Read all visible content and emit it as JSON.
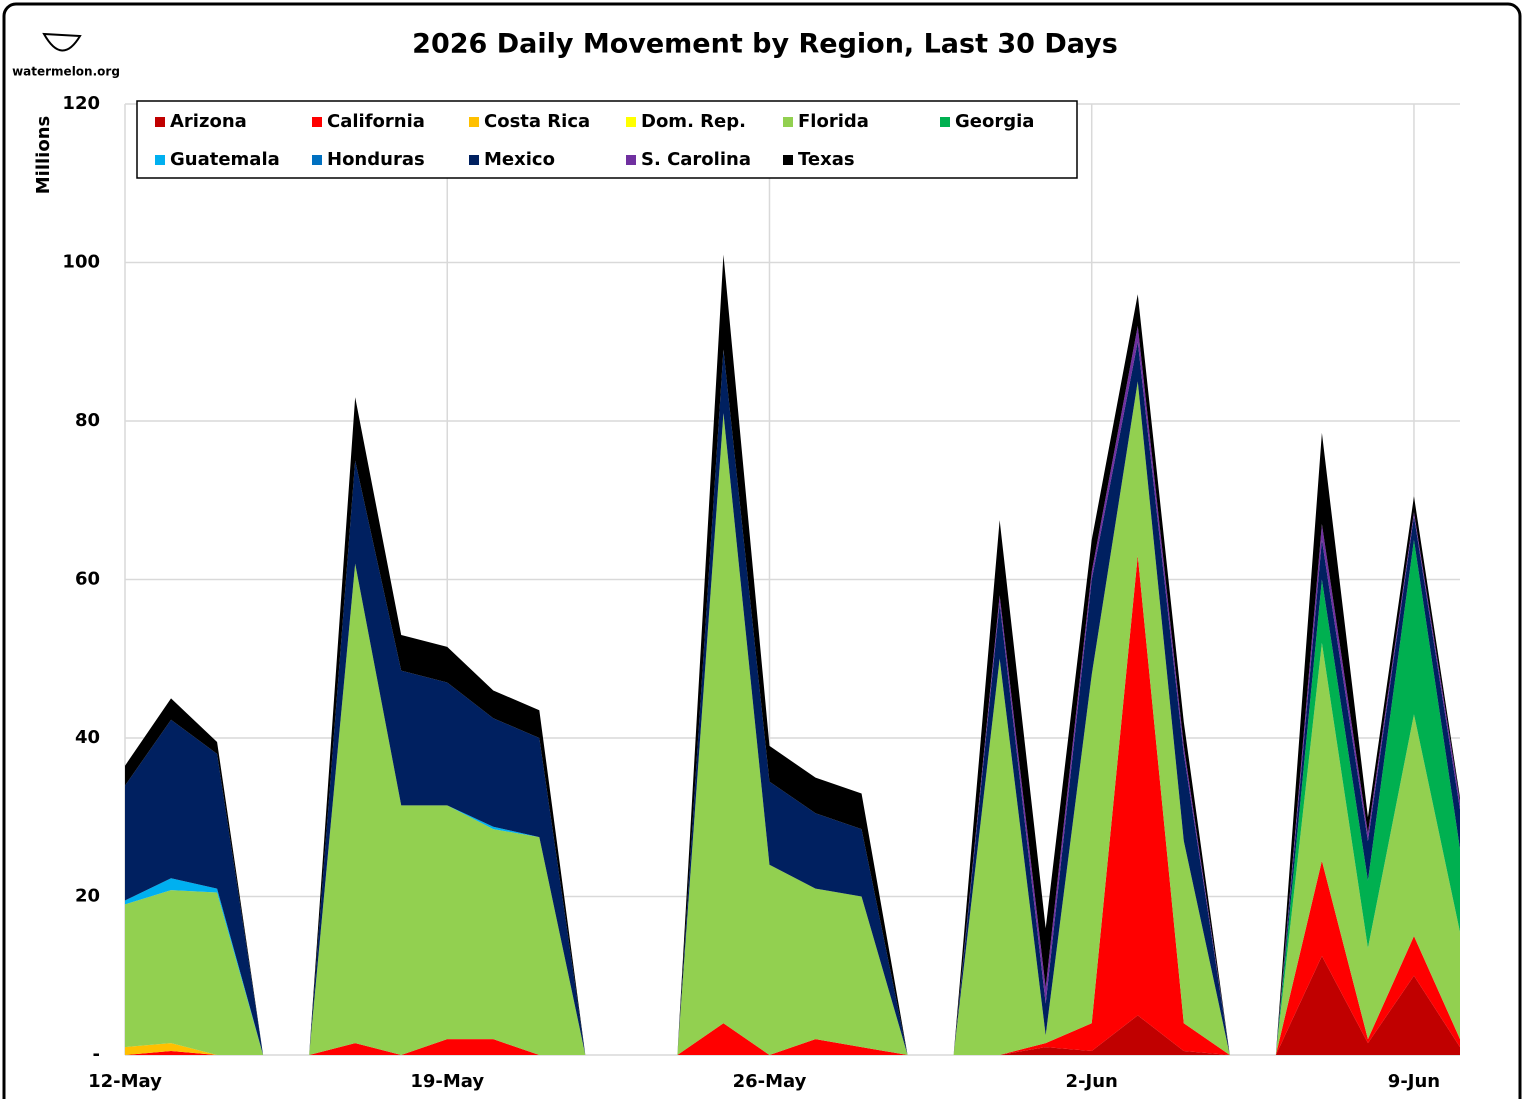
{
  "chart_data": {
    "type": "stacked_area",
    "title": "2026 Daily Movement by Region, Last 30 Days",
    "logo": "watermelon.org",
    "ylabel": "Millions",
    "categories": [
      "12-May",
      null,
      null,
      null,
      null,
      null,
      null,
      "19-May",
      null,
      null,
      null,
      null,
      null,
      null,
      "26-May",
      null,
      null,
      null,
      null,
      null,
      null,
      "2-Jun",
      null,
      null,
      null,
      null,
      null,
      null,
      "9-Jun",
      null
    ],
    "ylim": [
      0,
      120
    ],
    "yticks": [
      {
        "value": 0,
        "label": "-"
      },
      20,
      40,
      60,
      80,
      100,
      120
    ],
    "grid": true,
    "legend": "top-left",
    "series": [
      {
        "name": "Arizona",
        "color": "#c00000",
        "values": [
          0,
          0,
          0,
          0,
          0,
          0,
          0,
          0,
          0,
          0,
          0,
          0,
          0,
          0,
          0,
          0,
          0,
          0,
          0,
          0,
          1,
          0.5,
          5,
          0.5,
          0,
          0,
          12.5,
          1.5,
          10,
          1
        ]
      },
      {
        "name": "California",
        "color": "#ff0000",
        "values": [
          0,
          0.5,
          0,
          0,
          0,
          1.5,
          0,
          2,
          2,
          0,
          0,
          0,
          0,
          4,
          0,
          2,
          1,
          0,
          0,
          0,
          0.5,
          3.5,
          58,
          3.5,
          0,
          0,
          12,
          0.5,
          5,
          1
        ]
      },
      {
        "name": "Costa Rica",
        "color": "#ffc000",
        "values": [
          1,
          1,
          0,
          0,
          0,
          0,
          0,
          0,
          0,
          0,
          0,
          0,
          0,
          0,
          0,
          0,
          0,
          0,
          0,
          0,
          0,
          0,
          0,
          0,
          0,
          0,
          0,
          0,
          0,
          0
        ]
      },
      {
        "name": "Dom. Rep.",
        "color": "#ffff00",
        "values": [
          0,
          0,
          0,
          0,
          0,
          0,
          0,
          0,
          0,
          0,
          0,
          0,
          0,
          0,
          0,
          0,
          0,
          0,
          0,
          0,
          0,
          0,
          0,
          0,
          0,
          0,
          0,
          0,
          0,
          0
        ]
      },
      {
        "name": "Florida",
        "color": "#92d050",
        "values": [
          18,
          19.3,
          20.5,
          0,
          0,
          60.5,
          31.5,
          29.5,
          26.5,
          27.5,
          0,
          0,
          0,
          77,
          24,
          19,
          19,
          0,
          0,
          50,
          1,
          44,
          22,
          23,
          0,
          0,
          27.5,
          11.5,
          28,
          13.5
        ]
      },
      {
        "name": "Georgia",
        "color": "#00b050",
        "values": [
          0,
          0,
          0,
          0,
          0,
          0,
          0,
          0,
          0,
          0,
          0,
          0,
          0,
          0,
          0,
          0,
          0,
          0,
          0,
          0,
          0,
          0,
          0,
          0,
          0,
          0,
          8,
          8.5,
          22,
          10.5
        ]
      },
      {
        "name": "Guatemala",
        "color": "#00b0f0",
        "values": [
          0.5,
          1.5,
          0.5,
          0,
          0,
          0,
          0,
          0,
          0.3,
          0,
          0,
          0,
          0,
          0,
          0,
          0,
          0,
          0,
          0,
          0,
          0,
          0,
          0,
          0,
          0,
          0,
          0,
          0,
          0,
          0
        ]
      },
      {
        "name": "Honduras",
        "color": "#0070c0",
        "values": [
          0,
          0,
          0,
          0,
          0,
          0,
          0,
          0,
          0,
          0,
          0,
          0,
          0,
          0,
          0,
          0,
          0,
          0,
          0,
          0,
          0,
          0,
          0,
          0,
          0,
          0,
          0,
          0,
          0,
          0
        ]
      },
      {
        "name": "Mexico",
        "color": "#002060",
        "values": [
          14.5,
          20,
          17,
          0,
          0,
          13,
          17,
          15.5,
          13.7,
          12.5,
          0,
          0,
          0,
          8,
          10.5,
          9.5,
          8.5,
          0,
          0,
          7,
          4,
          12,
          5,
          11,
          0,
          0,
          5,
          5,
          3,
          5
        ]
      },
      {
        "name": "S. Carolina",
        "color": "#7030a0",
        "values": [
          0,
          0,
          0,
          0,
          0,
          0,
          0,
          0,
          0,
          0,
          0,
          0,
          0,
          0,
          0,
          0,
          0,
          0,
          0,
          1,
          2,
          1,
          2,
          1,
          0,
          0,
          2,
          1,
          0.5,
          1
        ]
      },
      {
        "name": "Texas",
        "color": "#000000",
        "values": [
          2.5,
          2.7,
          1.5,
          0,
          0,
          8,
          4.5,
          4.5,
          3.5,
          3.5,
          0,
          0,
          0,
          12,
          4.5,
          4.5,
          4.5,
          0,
          0,
          9.5,
          7.5,
          4,
          4,
          3,
          0,
          0,
          11.5,
          2,
          2,
          0.5
        ]
      }
    ]
  }
}
